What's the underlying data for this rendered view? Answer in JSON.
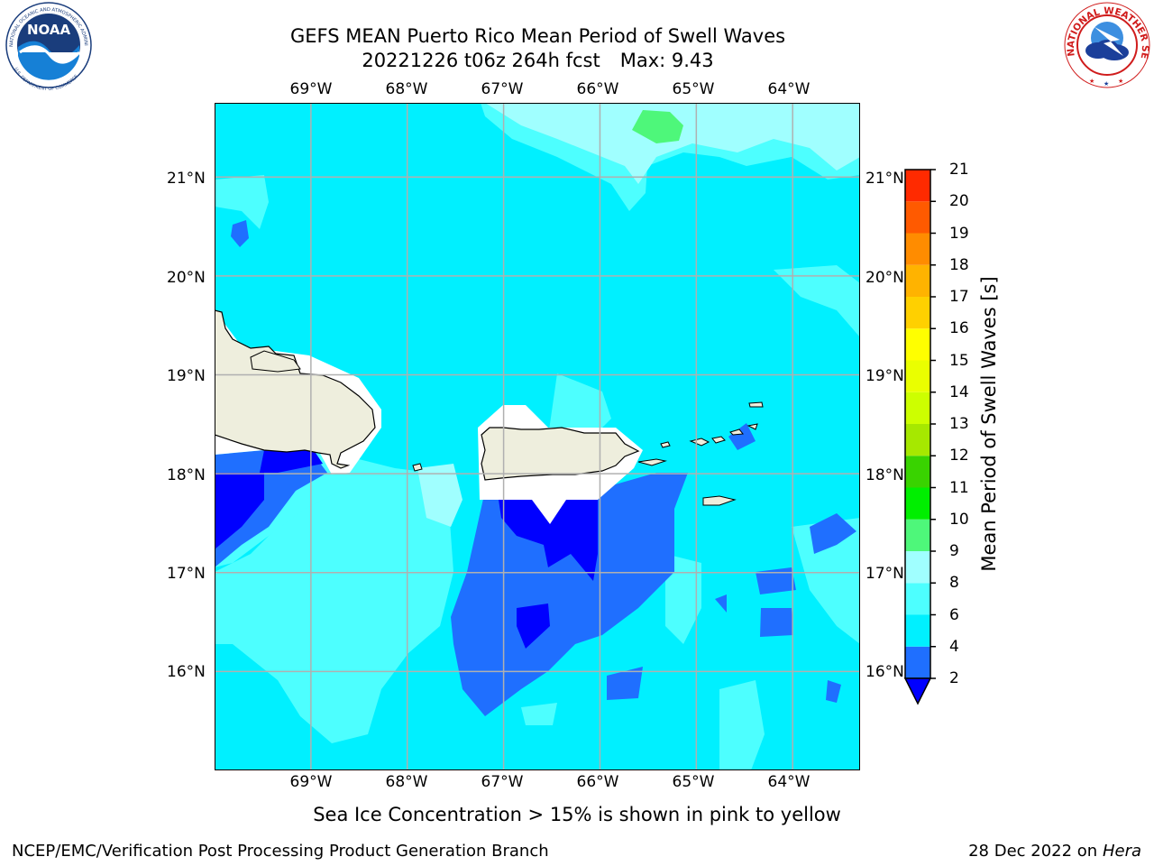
{
  "title": {
    "line1": "GEFS MEAN Puerto Rico Mean Period of Swell Waves",
    "date": "20221226 t06z 264h fcst",
    "max": "Max: 9.43"
  },
  "caption": "Sea Ice Concentration > 15% is shown in pink to yellow",
  "footer": {
    "branch": "NCEP/EMC/Verification Post Processing Product Generation Branch",
    "date": "28 Dec 2022 on",
    "machine": "Hera"
  },
  "logos": {
    "noaa_text": "NOAA",
    "noaa_ring": "NATIONAL OCEANIC AND ATMOSPHERIC ADMINISTRATION",
    "noaa_ring_bottom": "U.S. DEPARTMENT OF COMMERCE",
    "nws_ring": "NATIONAL WEATHER SERVICE"
  },
  "map": {
    "lon_labels": [
      "69°W",
      "68°W",
      "67°W",
      "66°W",
      "65°W",
      "64°W"
    ],
    "lat_labels": [
      "21°N",
      "20°N",
      "19°N",
      "18°N",
      "17°N",
      "16°N"
    ],
    "lon_range": [
      -70.0,
      -63.3
    ],
    "lat_range": [
      15.0,
      21.75
    ]
  },
  "colorbar": {
    "title": "Mean Period of Swell Waves [s]",
    "ticks": [
      "2",
      "4",
      "6",
      "8",
      "9",
      "10",
      "11",
      "12",
      "13",
      "14",
      "15",
      "16",
      "17",
      "18",
      "19",
      "20",
      "21"
    ],
    "colors": [
      "#1f6fff",
      "#00f0ff",
      "#4dffff",
      "#a0ffff",
      "#4ef77a",
      "#00ef00",
      "#39d300",
      "#a6e800",
      "#cdff00",
      "#eaff00",
      "#ffff00",
      "#ffd000",
      "#ffb300",
      "#ff8c00",
      "#ff5a00",
      "#ff2a00",
      "#ff0000"
    ],
    "under_color": "#0000ff"
  },
  "colors": {
    "land": "#eeeedd",
    "blue_dark": "#0000ff",
    "blue": "#1f6fff",
    "cyan": "#00f0ff",
    "cyan_light": "#4dffff",
    "cyan_pale": "#a0ffff",
    "green": "#4ef77a",
    "grid": "#b0b0b0"
  }
}
